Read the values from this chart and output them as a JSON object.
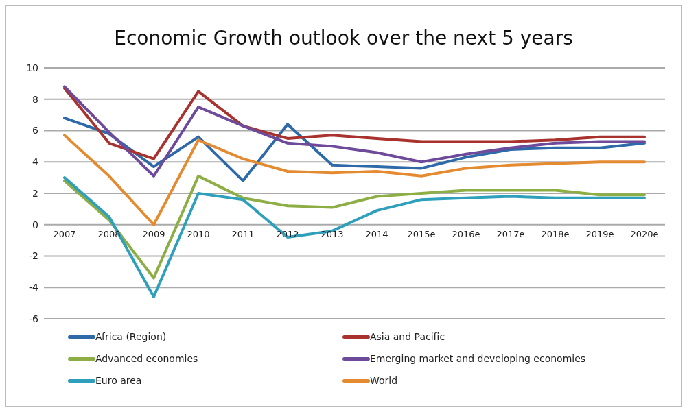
{
  "chart_data": {
    "type": "line",
    "title": "Economic Growth outlook over the next 5 years",
    "categories": [
      "2007",
      "2008",
      "2009",
      "2010",
      "2011",
      "2012",
      "2013",
      "2014",
      "2015e",
      "2016e",
      "2017e",
      "2018e",
      "2019e",
      "2020e"
    ],
    "series": [
      {
        "name": "Africa (Region)",
        "color": "#2e6aa8",
        "values": [
          6.8,
          5.8,
          3.7,
          5.6,
          2.8,
          6.4,
          3.8,
          3.7,
          3.6,
          4.3,
          4.8,
          4.9,
          4.9,
          5.2
        ]
      },
      {
        "name": "Asia and Pacific",
        "color": "#a8322d",
        "values": [
          8.7,
          5.2,
          4.2,
          8.5,
          6.3,
          5.5,
          5.7,
          5.5,
          5.3,
          5.3,
          5.3,
          5.4,
          5.6,
          5.6
        ]
      },
      {
        "name": "Advanced economies",
        "color": "#8cae44",
        "values": [
          2.8,
          0.3,
          -3.4,
          3.1,
          1.7,
          1.2,
          1.1,
          1.8,
          2.0,
          2.2,
          2.2,
          2.2,
          1.9,
          1.9
        ]
      },
      {
        "name": "Emerging market and developing economies",
        "color": "#6e4a9a",
        "values": [
          8.8,
          5.9,
          3.1,
          7.5,
          6.3,
          5.2,
          5.0,
          4.6,
          4.0,
          4.5,
          4.9,
          5.2,
          5.3,
          5.3
        ]
      },
      {
        "name": "Euro area",
        "color": "#2fa0bb",
        "values": [
          3.0,
          0.5,
          -4.6,
          2.0,
          1.6,
          -0.8,
          -0.4,
          0.9,
          1.6,
          1.7,
          1.8,
          1.7,
          1.7,
          1.7
        ]
      },
      {
        "name": "World",
        "color": "#e48a30",
        "values": [
          5.7,
          3.1,
          0.0,
          5.4,
          4.2,
          3.4,
          3.3,
          3.4,
          3.1,
          3.6,
          3.8,
          3.9,
          4.0,
          4.0
        ]
      }
    ],
    "ylim": [
      -6,
      10
    ],
    "yticks": [
      -6,
      -4,
      -2,
      0,
      2,
      4,
      6,
      8,
      10
    ],
    "grid": "y",
    "legend": "bottom",
    "marker": "none",
    "line_style": "solid"
  }
}
